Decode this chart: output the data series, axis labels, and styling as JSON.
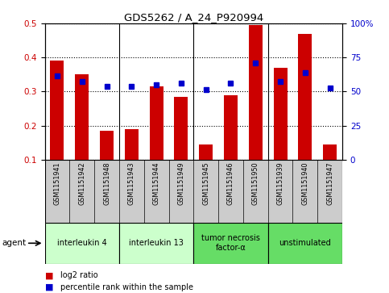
{
  "title": "GDS5262 / A_24_P920994",
  "samples": [
    "GSM1151941",
    "GSM1151942",
    "GSM1151948",
    "GSM1151943",
    "GSM1151944",
    "GSM1151949",
    "GSM1151945",
    "GSM1151946",
    "GSM1151950",
    "GSM1151939",
    "GSM1151940",
    "GSM1151947"
  ],
  "log2_ratio": [
    0.39,
    0.35,
    0.185,
    0.19,
    0.315,
    0.285,
    0.145,
    0.29,
    0.495,
    0.37,
    0.47,
    0.145
  ],
  "percentile_rank": [
    0.345,
    0.33,
    0.315,
    0.315,
    0.32,
    0.325,
    0.305,
    0.325,
    0.385,
    0.33,
    0.355,
    0.31
  ],
  "ylim_left": [
    0.1,
    0.5
  ],
  "ylim_right": [
    0,
    100
  ],
  "yticks_left": [
    0.1,
    0.2,
    0.3,
    0.4,
    0.5
  ],
  "yticks_right": [
    0,
    25,
    50,
    75,
    100
  ],
  "ytick_labels_right": [
    "0",
    "25",
    "50",
    "75",
    "100%"
  ],
  "bar_color": "#cc0000",
  "dot_color": "#0000cc",
  "background_color": "#ffffff",
  "sample_box_color": "#cccccc",
  "group_bounds": [
    {
      "start": 0,
      "end": 2,
      "label": "interleukin 4",
      "color": "#ccffcc"
    },
    {
      "start": 3,
      "end": 5,
      "label": "interleukin 13",
      "color": "#ccffcc"
    },
    {
      "start": 6,
      "end": 8,
      "label": "tumor necrosis\nfactor-α",
      "color": "#66dd66"
    },
    {
      "start": 9,
      "end": 11,
      "label": "unstimulated",
      "color": "#66dd66"
    }
  ],
  "legend_items": [
    {
      "color": "#cc0000",
      "label": "log2 ratio"
    },
    {
      "color": "#0000cc",
      "label": "percentile rank within the sample"
    }
  ],
  "agent_label": "agent"
}
